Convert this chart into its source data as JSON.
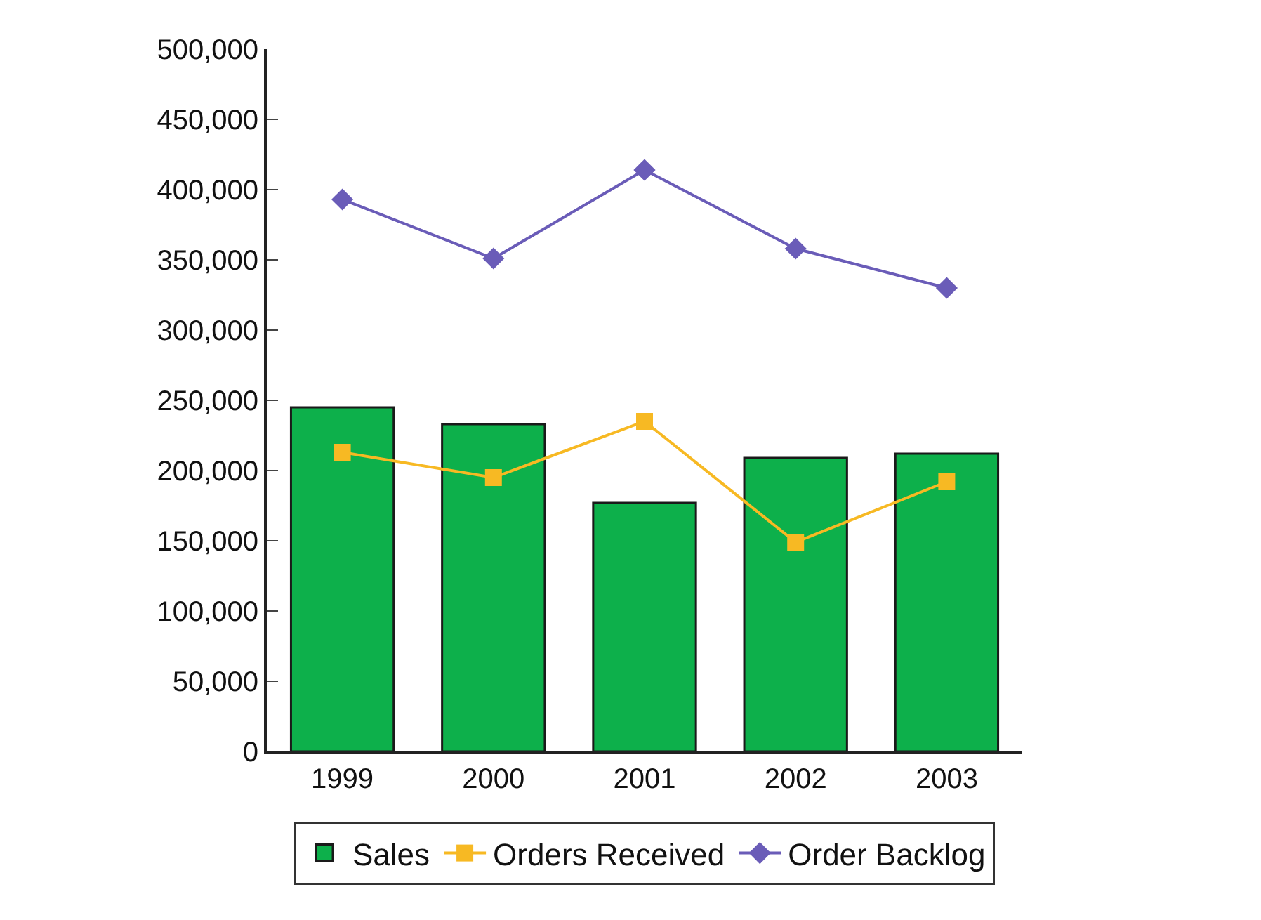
{
  "chart_data": {
    "type": "bar",
    "categories": [
      "1999",
      "2000",
      "2001",
      "2002",
      "2003"
    ],
    "series": [
      {
        "name": "Sales",
        "color": "#0db04b",
        "values": [
          245000,
          233000,
          177000,
          209000,
          212000
        ]
      },
      {
        "name": "Orders Received",
        "type": "line",
        "color": "#f7b923",
        "marker": "square",
        "values": [
          213000,
          195000,
          235000,
          149000,
          192000
        ]
      },
      {
        "name": "Order Backlog",
        "type": "line",
        "color": "#6a5cb8",
        "marker": "diamond",
        "values": [
          393000,
          351000,
          414000,
          358000,
          330000
        ]
      }
    ],
    "ylim": [
      0,
      500000
    ],
    "yticks": [
      {
        "value": 0,
        "label": "0"
      },
      {
        "value": 50000,
        "label": "50,000"
      },
      {
        "value": 100000,
        "label": "100,000"
      },
      {
        "value": 150000,
        "label": "150,000"
      },
      {
        "value": 200000,
        "label": "200,000"
      },
      {
        "value": 250000,
        "label": "250,000"
      },
      {
        "value": 300000,
        "label": "300,000"
      },
      {
        "value": 350000,
        "label": "350,000"
      },
      {
        "value": 400000,
        "label": "400,000"
      },
      {
        "value": 450000,
        "label": "450,000"
      },
      {
        "value": 500000,
        "label": "500,000"
      }
    ],
    "legend": "bottom"
  }
}
